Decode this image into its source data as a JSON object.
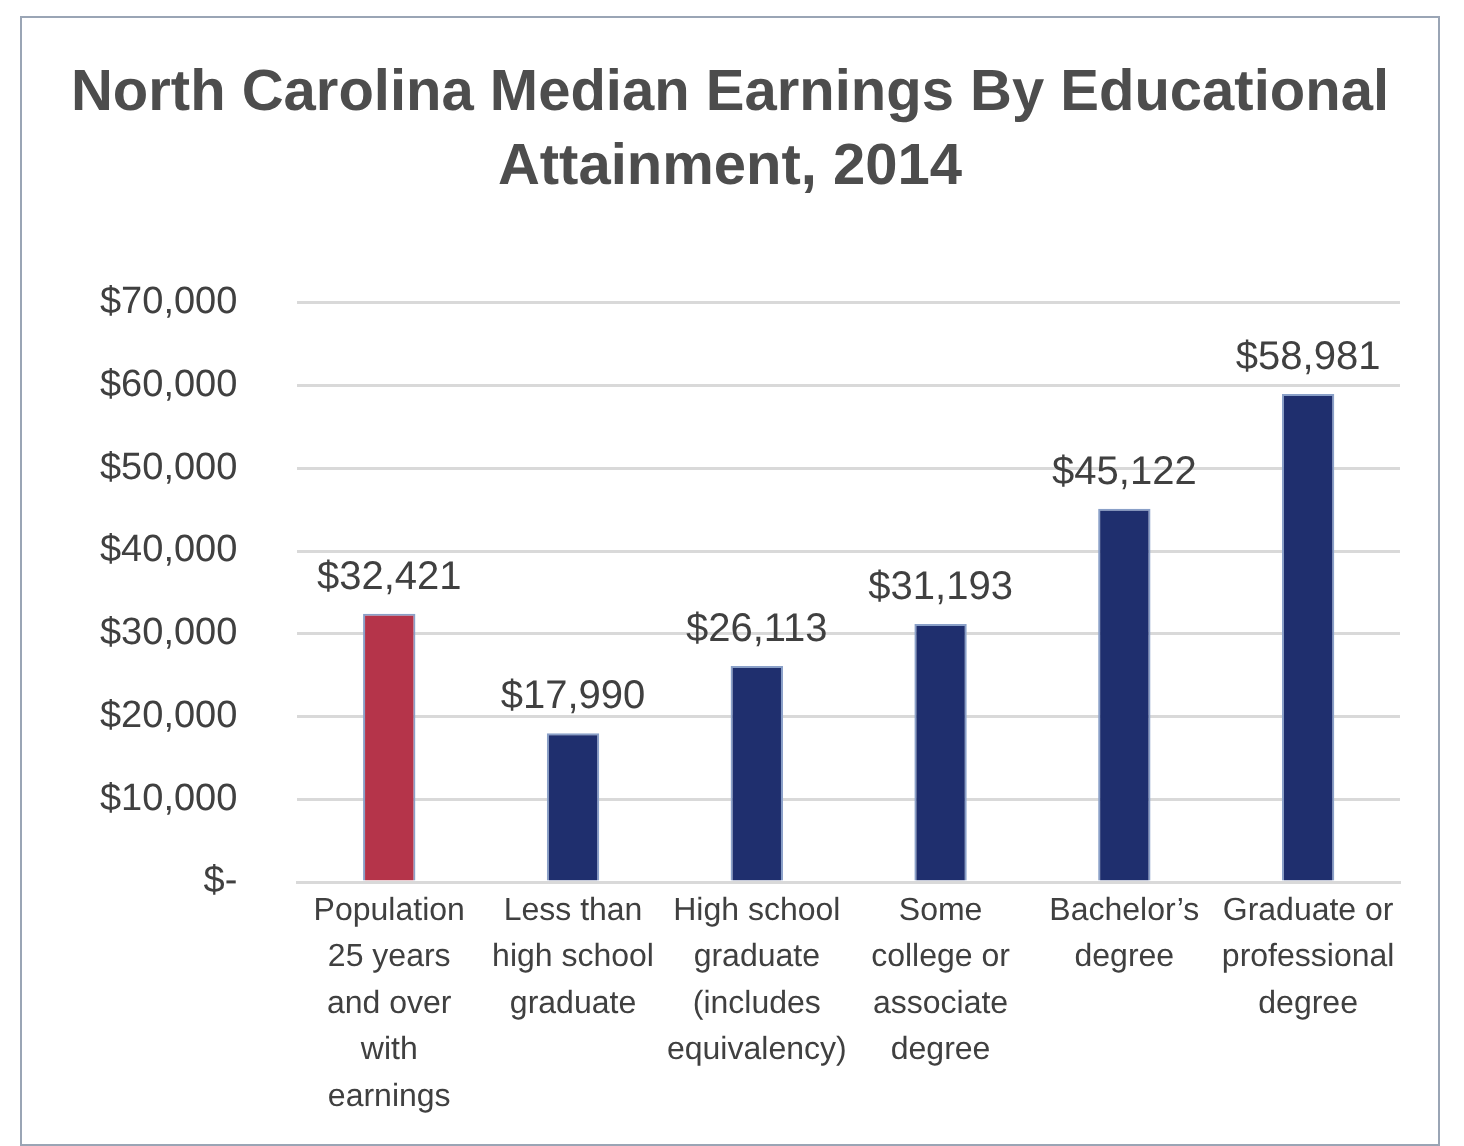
{
  "chart_data": {
    "type": "bar",
    "title": "North Carolina Median Earnings By Educational Attainment, 2014",
    "categories": [
      "Population 25 years and over with earnings",
      "Less than high school graduate",
      "High school graduate (includes equivalency)",
      "Some college or associate degree",
      "Bachelor’s degree",
      "Graduate or professional degree"
    ],
    "values": [
      32421,
      17990,
      26113,
      31193,
      45122,
      58981
    ],
    "colors": [
      "#b5344a",
      "#1f2f6e",
      "#1f2f6e",
      "#1f2f6e",
      "#1f2f6e",
      "#1f2f6e"
    ],
    "value_labels": [
      "$32,421",
      "$17,990",
      "$26,113",
      "$31,193",
      "$45,122",
      "$58,981"
    ],
    "ylim": [
      0,
      70000
    ],
    "yticks": [
      {
        "value": 0,
        "label": "$-"
      },
      {
        "value": 10000,
        "label": "$10,000"
      },
      {
        "value": 20000,
        "label": "$20,000"
      },
      {
        "value": 30000,
        "label": "$30,000"
      },
      {
        "value": 40000,
        "label": "$40,000"
      },
      {
        "value": 50000,
        "label": "$50,000"
      },
      {
        "value": 60000,
        "label": "$60,000"
      },
      {
        "value": 70000,
        "label": "$70,000"
      }
    ],
    "grid": "y",
    "legend": false
  }
}
